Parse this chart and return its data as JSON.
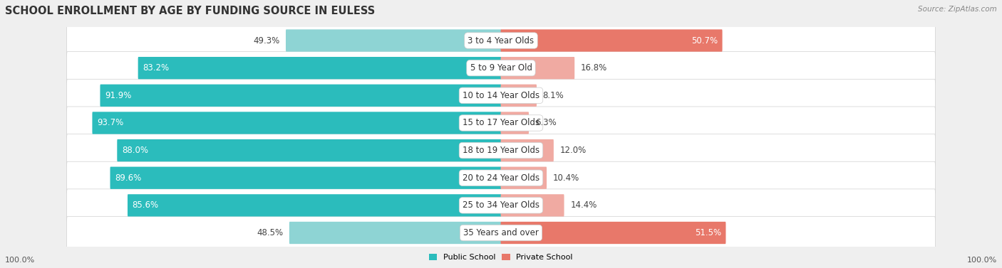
{
  "title": "SCHOOL ENROLLMENT BY AGE BY FUNDING SOURCE IN EULESS",
  "source": "Source: ZipAtlas.com",
  "categories": [
    "3 to 4 Year Olds",
    "5 to 9 Year Old",
    "10 to 14 Year Olds",
    "15 to 17 Year Olds",
    "18 to 19 Year Olds",
    "20 to 24 Year Olds",
    "25 to 34 Year Olds",
    "35 Years and over"
  ],
  "public_values": [
    49.3,
    83.2,
    91.9,
    93.7,
    88.0,
    89.6,
    85.6,
    48.5
  ],
  "private_values": [
    50.7,
    16.8,
    8.1,
    6.3,
    12.0,
    10.4,
    14.4,
    51.5
  ],
  "public_color_strong": "#2bbcbc",
  "public_color_light": "#8ed4d4",
  "private_color_strong": "#e8786a",
  "private_color_light": "#f0aaa2",
  "bg_color": "#efefef",
  "row_bg": "#e8e8e8",
  "legend_public": "Public School",
  "legend_private": "Private School",
  "title_fontsize": 10.5,
  "label_fontsize": 8.5,
  "cat_fontsize": 8.5,
  "axis_fontsize": 8.0
}
